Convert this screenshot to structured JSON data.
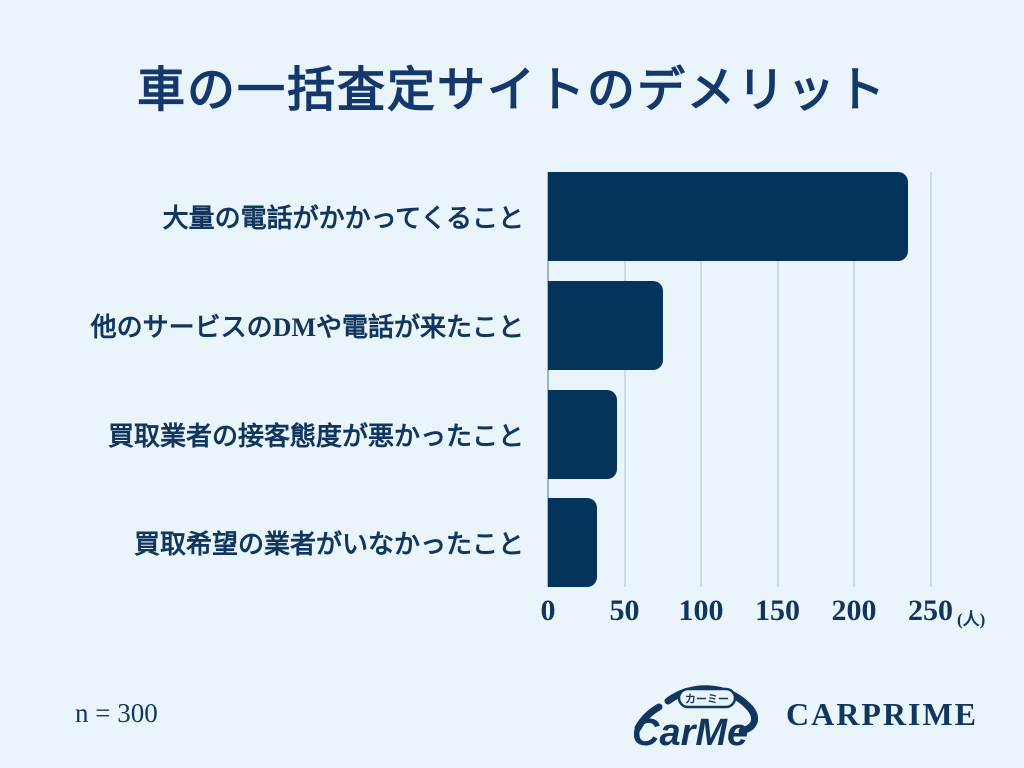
{
  "title": "車の一括査定サイトのデメリット",
  "footnote": "n = 300",
  "logos": {
    "carme_text": "CarMe",
    "carme_badge": "カーミー",
    "carprime": "CARPRIME"
  },
  "colors": {
    "background": "#eaf4fb",
    "bar": "#04345b",
    "title_text": "#14386b",
    "label_text": "#10365e",
    "gridline": "#cbdae4",
    "axis_line": "#9db4c4"
  },
  "chart_data": {
    "type": "bar",
    "orientation": "horizontal",
    "title": "車の一括査定サイトのデメリット",
    "categories": [
      "大量の電話がかかってくること",
      "他のサービスのDMや電話が来たこと",
      "買取業者の接客態度が悪かったこと",
      "買取希望の業者がいなかったこと"
    ],
    "values": [
      235,
      75,
      45,
      32
    ],
    "unit": "(人)",
    "xlabel": "(人)",
    "xlim": [
      0,
      250
    ],
    "xticks": [
      0,
      50,
      100,
      150,
      200,
      250
    ],
    "grid": true,
    "legend": false,
    "sample_size": "n = 300",
    "bar_color": "#04345b"
  }
}
